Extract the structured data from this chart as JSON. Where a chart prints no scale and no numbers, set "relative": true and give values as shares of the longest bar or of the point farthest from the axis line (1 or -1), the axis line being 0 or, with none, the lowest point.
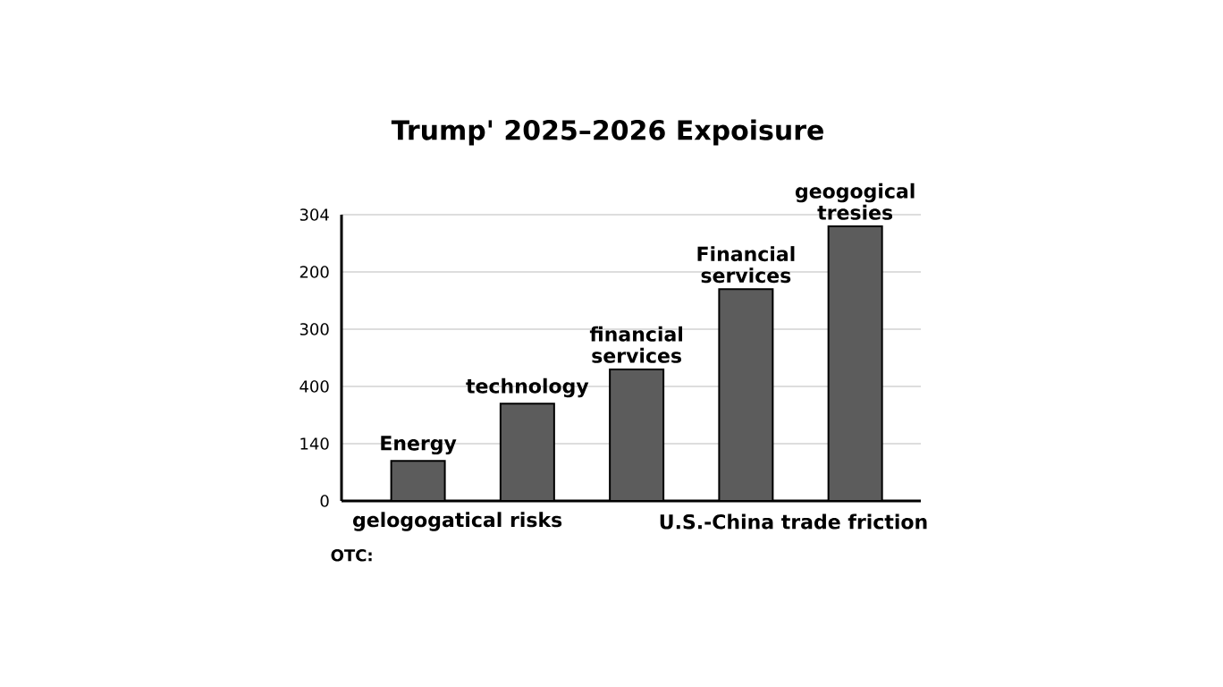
{
  "chart_data": {
    "type": "bar",
    "title": "Trump' 2025–2026 Expoisure",
    "categories": [
      null,
      null,
      null,
      null,
      null
    ],
    "values": [
      0.146,
      0.354,
      0.479,
      0.771,
      1
    ],
    "relative": true,
    "color": "#5c5c5c",
    "grid": "y",
    "annotations": [
      "304",
      "200",
      "300",
      "400",
      "140",
      "0",
      "Energy",
      "technology",
      "financial services",
      "Financial services",
      "geogogical tresies",
      "gelogogatical risks",
      "U.S.-China trade friction",
      "OTC:"
    ]
  }
}
